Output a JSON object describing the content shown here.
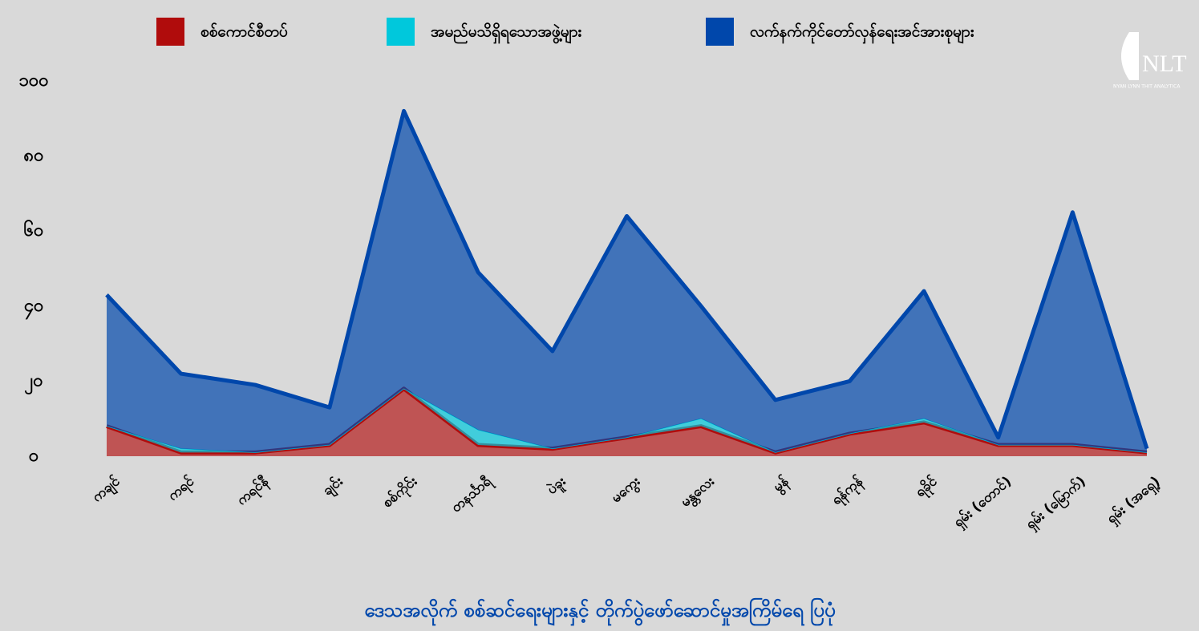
{
  "chart_data": {
    "type": "stacked_area",
    "title": "ဒေသအလိုက် စစ်ဆင်ရေးများနှင့် တိုက်ပွဲဖော်ဆောင်မှုအကြိမ်ရေ ပြပုံ",
    "logo": "NLT",
    "logo_subtitle": "NYAN LYNN THIT ANALYTICA",
    "categories": [
      "ကချင်",
      "ကရင်",
      "ကရင်နီ",
      "ချင်း",
      "စစ်ကိုင်း",
      "တနင်္သာရီ",
      "ပဲခူး",
      "မကွေး",
      "မန္တလေး",
      "မွန်",
      "ရန်ကုန်",
      "ရခိုင်",
      "ရှမ်း (တောင်)",
      "ရှမ်း (မြောက်)",
      "ရှမ်း (အရှေ့)"
    ],
    "series": [
      {
        "name": "စစ်ကောင်စီတပ်",
        "color": "#b00c0c",
        "values": [
          8,
          1,
          1,
          3,
          18,
          3,
          2,
          5,
          8,
          1,
          6,
          9,
          3,
          3,
          1
        ]
      },
      {
        "name": "အမည်မသိရှိရသောအဖွဲ့များ",
        "color": "#00c8dc",
        "values": [
          0,
          1,
          0,
          0,
          0,
          4,
          0,
          0,
          2,
          0,
          0,
          1,
          0,
          0,
          0
        ]
      },
      {
        "name": "လက်နက်ကိုင်တော်လှန်ရေးအင်အားစုများ",
        "color": "#0047ab",
        "values": [
          35,
          20,
          18,
          10,
          74,
          42,
          26,
          59,
          30,
          14,
          14,
          34,
          2,
          62,
          1
        ]
      }
    ],
    "ylim": [
      0,
      100
    ],
    "yticks": [
      {
        "value": 0,
        "label": "၀"
      },
      {
        "value": 20,
        "label": "၂၀"
      },
      {
        "value": 40,
        "label": "၄၀"
      },
      {
        "value": 60,
        "label": "၆၀"
      },
      {
        "value": 80,
        "label": "၈၀"
      },
      {
        "value": 100,
        "label": "၁၀၀"
      }
    ],
    "legend": "top"
  }
}
